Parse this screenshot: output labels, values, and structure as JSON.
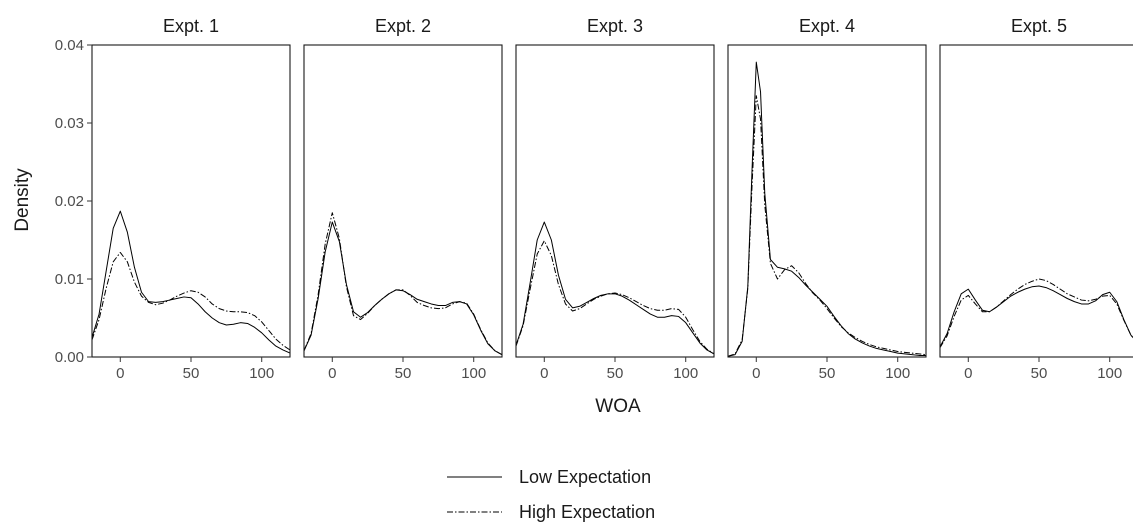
{
  "chart_data": {
    "type": "line",
    "xlabel": "WOA",
    "ylabel": "Density",
    "xlim": [
      -20,
      120
    ],
    "ylim": [
      0,
      0.04
    ],
    "x_ticks": [
      0,
      50,
      100
    ],
    "y_ticks": [
      0.0,
      0.01,
      0.02,
      0.03,
      0.04
    ],
    "y_tick_labels": [
      "0.00",
      "0.01",
      "0.02",
      "0.03",
      "0.04"
    ],
    "grid": false,
    "legend_position": "bottom",
    "series_styles": [
      {
        "name": "Low Expectation",
        "line": "solid",
        "color": "#000000"
      },
      {
        "name": "High Expectation",
        "line": "dashdot",
        "color": "#000000"
      }
    ],
    "panels": [
      {
        "title": "Expt. 1",
        "series": [
          {
            "name": "Low Expectation",
            "x": [
              -20,
              -15,
              -10,
              -5,
              0,
              5,
              10,
              15,
              20,
              25,
              30,
              35,
              40,
              45,
              50,
              55,
              60,
              65,
              70,
              75,
              80,
              85,
              90,
              95,
              100,
              105,
              110,
              115,
              120
            ],
            "y": [
              0.0025,
              0.0055,
              0.011,
              0.0165,
              0.0187,
              0.016,
              0.0115,
              0.0083,
              0.0071,
              0.007,
              0.0071,
              0.0073,
              0.0075,
              0.0077,
              0.0076,
              0.0068,
              0.0058,
              0.005,
              0.0044,
              0.0041,
              0.0042,
              0.0044,
              0.0043,
              0.0038,
              0.0031,
              0.0022,
              0.0014,
              0.0009,
              0.0005
            ]
          },
          {
            "name": "High Expectation",
            "x": [
              -20,
              -15,
              -10,
              -5,
              0,
              5,
              10,
              15,
              20,
              25,
              30,
              35,
              40,
              45,
              50,
              55,
              60,
              65,
              70,
              75,
              80,
              85,
              90,
              95,
              100,
              105,
              110,
              115,
              120
            ],
            "y": [
              0.0022,
              0.0048,
              0.0088,
              0.0122,
              0.0134,
              0.0122,
              0.0096,
              0.0078,
              0.007,
              0.0067,
              0.0069,
              0.0073,
              0.0078,
              0.0082,
              0.0085,
              0.0083,
              0.0077,
              0.0068,
              0.0062,
              0.0059,
              0.0058,
              0.0058,
              0.0057,
              0.0053,
              0.0045,
              0.0034,
              0.0023,
              0.0015,
              0.0009
            ]
          }
        ]
      },
      {
        "title": "Expt. 2",
        "series": [
          {
            "name": "Low Expectation",
            "x": [
              -20,
              -15,
              -10,
              -5,
              0,
              5,
              10,
              15,
              20,
              25,
              30,
              35,
              40,
              45,
              50,
              55,
              60,
              65,
              70,
              75,
              80,
              85,
              90,
              95,
              100,
              105,
              110,
              115,
              120
            ],
            "y": [
              0.0008,
              0.0028,
              0.0075,
              0.0135,
              0.0173,
              0.0148,
              0.0093,
              0.0058,
              0.0051,
              0.0057,
              0.0066,
              0.0074,
              0.0081,
              0.0086,
              0.0085,
              0.008,
              0.0074,
              0.0071,
              0.0068,
              0.0066,
              0.0066,
              0.007,
              0.0071,
              0.0068,
              0.0054,
              0.0034,
              0.0017,
              0.0008,
              0.0003
            ]
          },
          {
            "name": "High Expectation",
            "x": [
              -20,
              -15,
              -10,
              -5,
              0,
              5,
              10,
              15,
              20,
              25,
              30,
              35,
              40,
              45,
              50,
              55,
              60,
              65,
              70,
              75,
              80,
              85,
              90,
              95,
              100,
              105,
              110,
              115,
              120
            ],
            "y": [
              0.0008,
              0.003,
              0.008,
              0.0145,
              0.0185,
              0.0152,
              0.009,
              0.0053,
              0.0048,
              0.0056,
              0.0066,
              0.0074,
              0.0081,
              0.0086,
              0.0086,
              0.0079,
              0.007,
              0.0066,
              0.0063,
              0.0062,
              0.0063,
              0.0068,
              0.0071,
              0.0069,
              0.0055,
              0.0035,
              0.0018,
              0.0008,
              0.0003
            ]
          }
        ]
      },
      {
        "title": "Expt. 3",
        "series": [
          {
            "name": "Low Expectation",
            "x": [
              -20,
              -15,
              -10,
              -5,
              0,
              5,
              10,
              15,
              20,
              25,
              30,
              35,
              40,
              45,
              50,
              55,
              60,
              65,
              70,
              75,
              80,
              85,
              90,
              95,
              100,
              105,
              110,
              115,
              120
            ],
            "y": [
              0.0015,
              0.0042,
              0.0095,
              0.015,
              0.0173,
              0.015,
              0.0105,
              0.0074,
              0.0063,
              0.0065,
              0.007,
              0.0075,
              0.0079,
              0.0081,
              0.0081,
              0.0078,
              0.0073,
              0.0067,
              0.0061,
              0.0055,
              0.0051,
              0.0051,
              0.0053,
              0.0052,
              0.0044,
              0.0031,
              0.0018,
              0.0009,
              0.0004
            ]
          },
          {
            "name": "High Expectation",
            "x": [
              -20,
              -15,
              -10,
              -5,
              0,
              5,
              10,
              15,
              20,
              25,
              30,
              35,
              40,
              45,
              50,
              55,
              60,
              65,
              70,
              75,
              80,
              85,
              90,
              95,
              100,
              105,
              110,
              115,
              120
            ],
            "y": [
              0.0014,
              0.004,
              0.0087,
              0.0132,
              0.0149,
              0.013,
              0.0093,
              0.0068,
              0.0059,
              0.0062,
              0.0068,
              0.0074,
              0.0078,
              0.0081,
              0.0082,
              0.008,
              0.0076,
              0.0071,
              0.0066,
              0.0062,
              0.006,
              0.006,
              0.0062,
              0.0061,
              0.0051,
              0.0035,
              0.002,
              0.001,
              0.0004
            ]
          }
        ]
      },
      {
        "title": "Expt. 4",
        "series": [
          {
            "name": "Low Expectation",
            "x": [
              -20,
              -15,
              -10,
              -6,
              -3,
              0,
              3,
              6,
              10,
              15,
              20,
              25,
              30,
              35,
              40,
              45,
              50,
              55,
              60,
              65,
              70,
              75,
              80,
              85,
              90,
              95,
              100,
              105,
              110,
              115,
              120
            ],
            "y": [
              0.0001,
              0.0003,
              0.002,
              0.009,
              0.024,
              0.0378,
              0.034,
              0.021,
              0.0125,
              0.0115,
              0.0113,
              0.011,
              0.0102,
              0.0092,
              0.0083,
              0.0074,
              0.0065,
              0.0052,
              0.004,
              0.003,
              0.0023,
              0.0018,
              0.0014,
              0.0011,
              0.0009,
              0.0007,
              0.0005,
              0.0004,
              0.0003,
              0.0002,
              0.0002
            ]
          },
          {
            "name": "High Expectation",
            "x": [
              -20,
              -15,
              -10,
              -6,
              -3,
              0,
              3,
              6,
              10,
              15,
              20,
              25,
              30,
              35,
              40,
              45,
              50,
              55,
              60,
              65,
              70,
              75,
              80,
              85,
              90,
              95,
              100,
              105,
              110,
              115,
              120
            ],
            "y": [
              0.0001,
              0.0004,
              0.0022,
              0.0088,
              0.022,
              0.0335,
              0.0305,
              0.0195,
              0.012,
              0.01,
              0.0112,
              0.0117,
              0.0108,
              0.0094,
              0.0082,
              0.0073,
              0.0062,
              0.005,
              0.0039,
              0.0031,
              0.0025,
              0.002,
              0.0016,
              0.0013,
              0.0011,
              0.0009,
              0.0007,
              0.0006,
              0.0005,
              0.0004,
              0.0003
            ]
          }
        ]
      },
      {
        "title": "Expt. 5",
        "series": [
          {
            "name": "Low Expectation",
            "x": [
              -20,
              -15,
              -10,
              -5,
              0,
              5,
              10,
              15,
              20,
              25,
              30,
              35,
              40,
              45,
              50,
              55,
              60,
              65,
              70,
              75,
              80,
              85,
              90,
              95,
              100,
              105,
              110,
              115,
              120
            ],
            "y": [
              0.0013,
              0.003,
              0.0058,
              0.0081,
              0.0087,
              0.0073,
              0.006,
              0.0058,
              0.0064,
              0.0071,
              0.0078,
              0.0083,
              0.0087,
              0.009,
              0.0091,
              0.0089,
              0.0085,
              0.008,
              0.0075,
              0.0071,
              0.0068,
              0.0068,
              0.0072,
              0.008,
              0.0083,
              0.0071,
              0.0048,
              0.0028,
              0.0018
            ]
          },
          {
            "name": "High Expectation",
            "x": [
              -20,
              -15,
              -10,
              -5,
              0,
              5,
              10,
              15,
              20,
              25,
              30,
              35,
              40,
              45,
              50,
              55,
              60,
              65,
              70,
              75,
              80,
              85,
              90,
              95,
              100,
              105,
              110,
              115,
              120
            ],
            "y": [
              0.0012,
              0.0027,
              0.0052,
              0.0073,
              0.0079,
              0.0068,
              0.0058,
              0.0058,
              0.0064,
              0.0072,
              0.008,
              0.0087,
              0.0093,
              0.0097,
              0.01,
              0.0098,
              0.0093,
              0.0087,
              0.0081,
              0.0077,
              0.0073,
              0.0072,
              0.0074,
              0.0078,
              0.0079,
              0.0068,
              0.0047,
              0.0028,
              0.0018
            ]
          }
        ]
      }
    ]
  }
}
